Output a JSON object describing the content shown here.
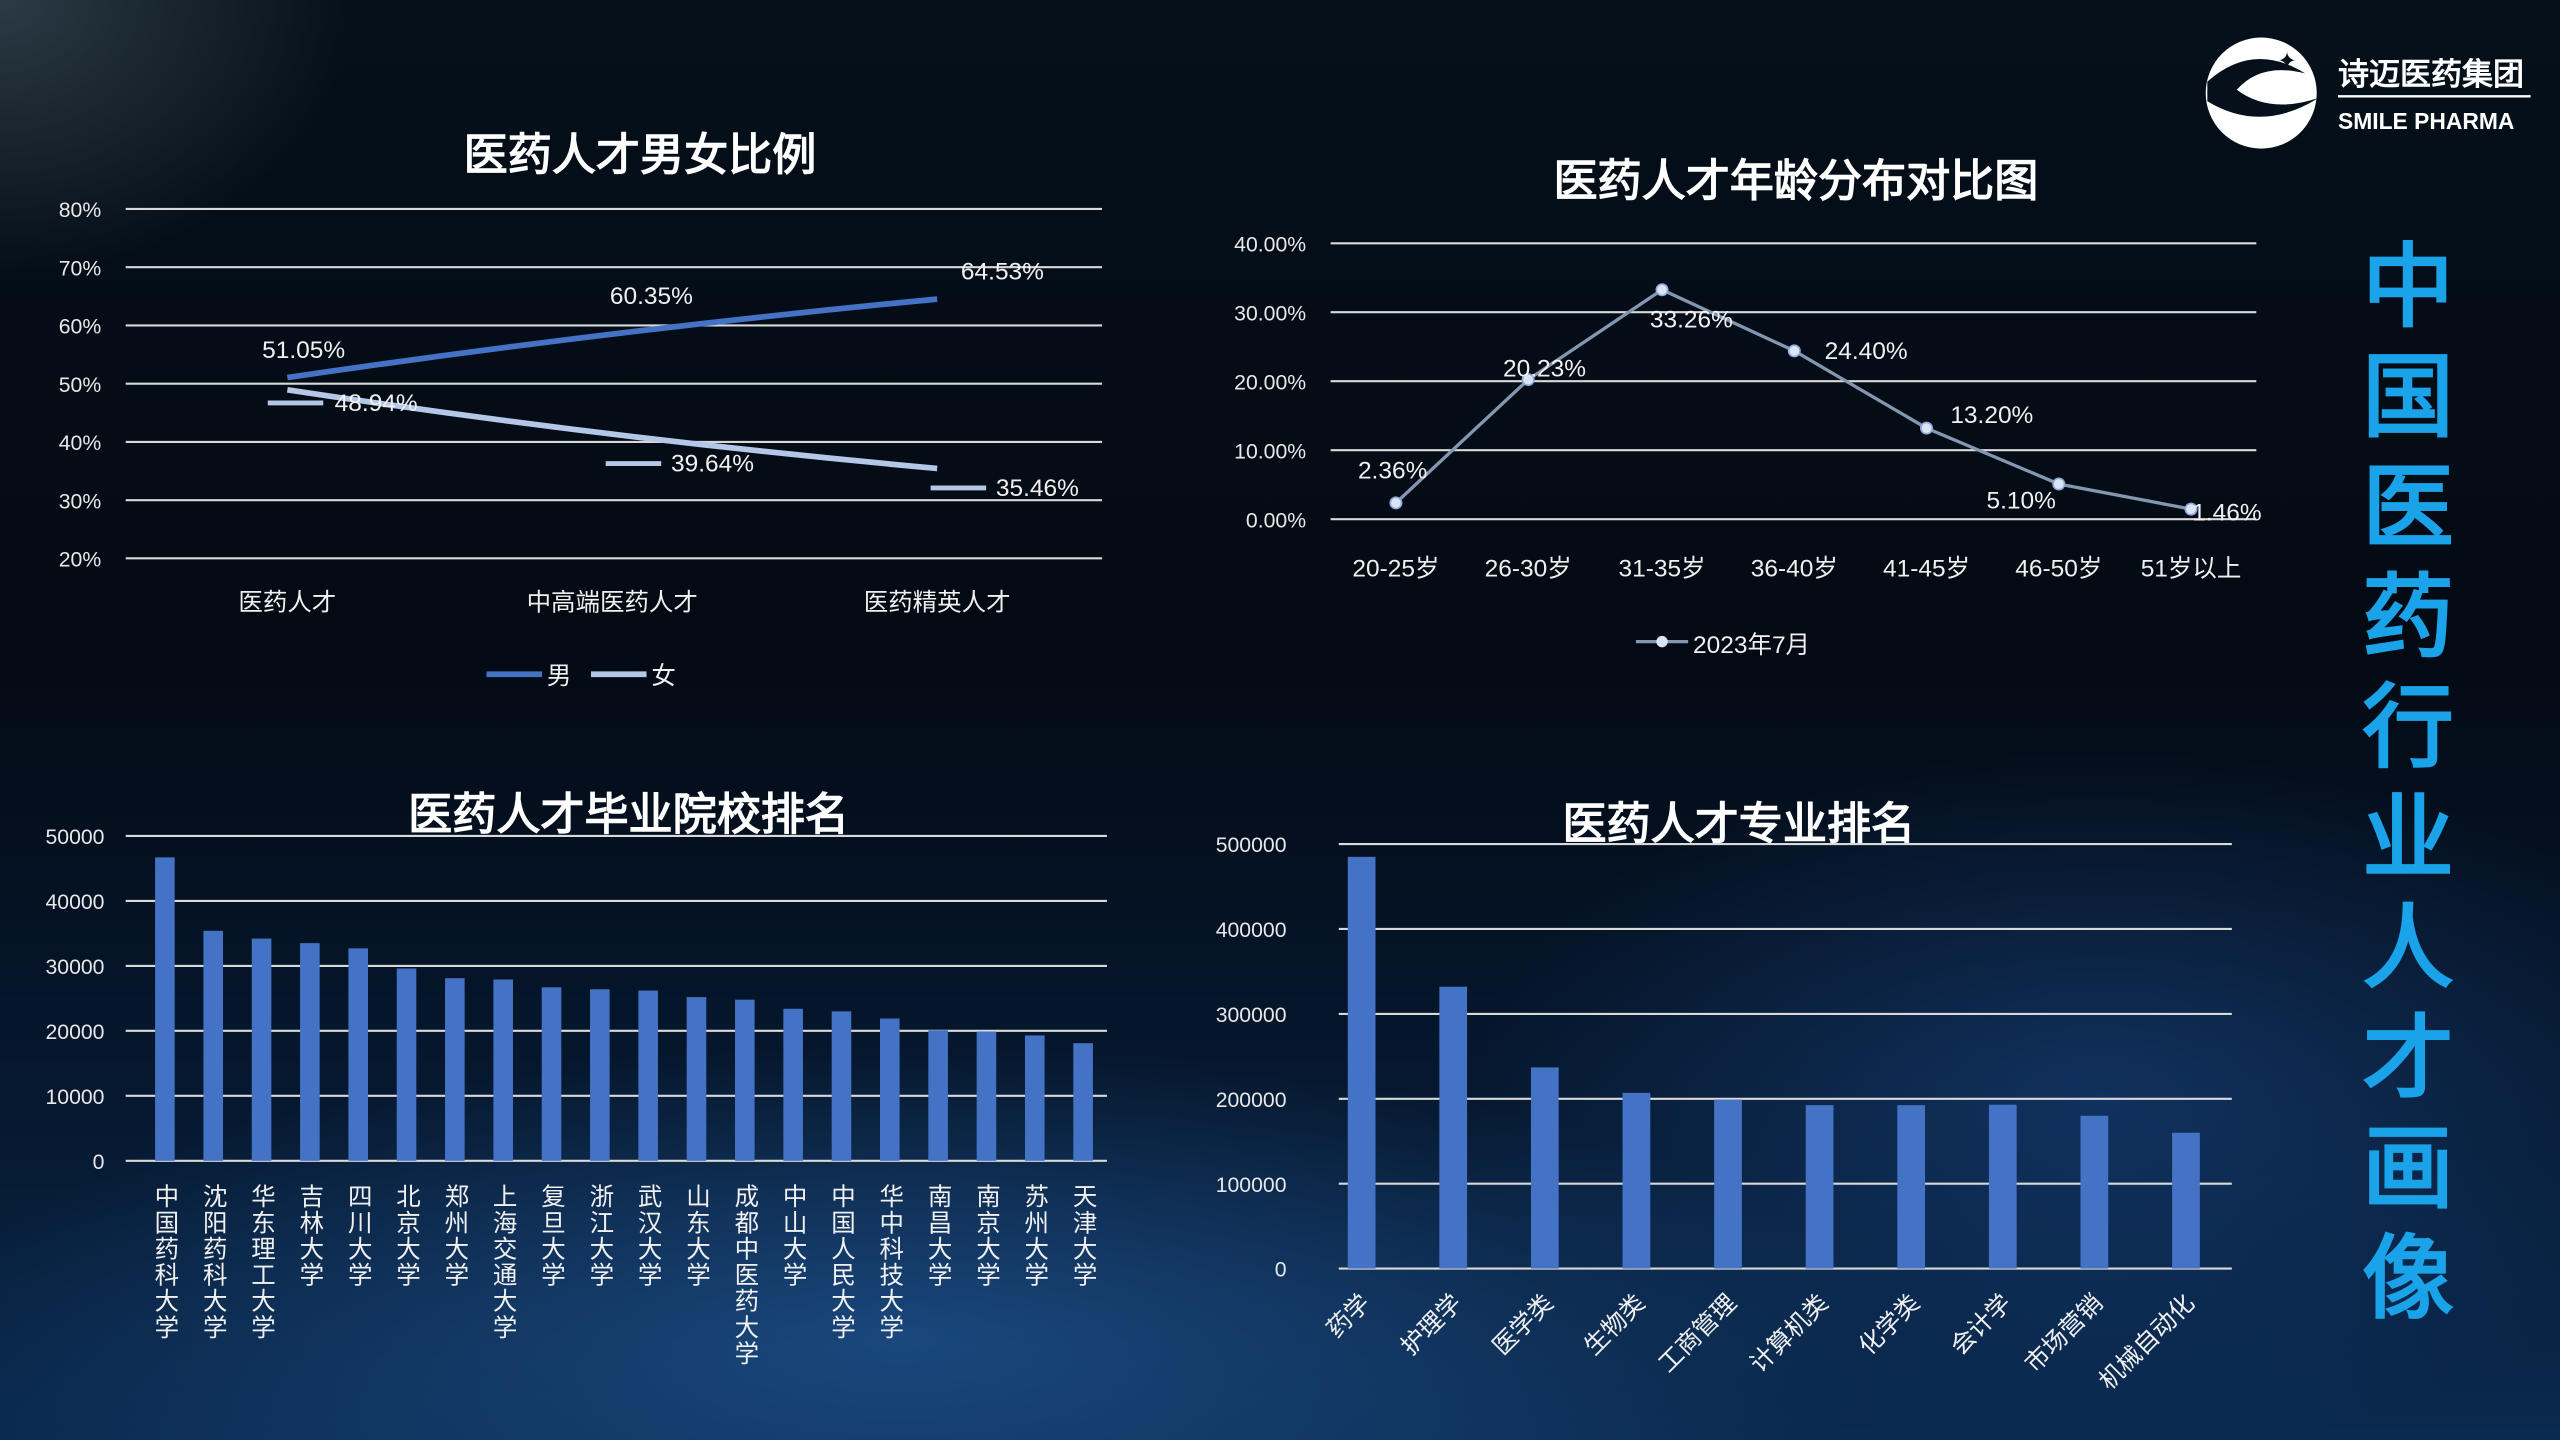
{
  "logo": {
    "name_cn": "诗迈医药集团",
    "name_en": "SMILE PHARMA"
  },
  "side_title": "中国医药行业人才画像",
  "colors": {
    "bar": "#4472c4",
    "male": "#4472c4",
    "female": "#b4c7e7",
    "age_line": "#8497b0",
    "side_title": "#1aa3e8"
  },
  "chart_data": [
    {
      "type": "line",
      "title": "医药人才男女比例",
      "categories": [
        "医药人才",
        "中高端医药人才",
        "医药精英人才"
      ],
      "yticks": [
        "80%",
        "70%",
        "60%",
        "50%",
        "40%",
        "30%",
        "20%"
      ],
      "ylim": [
        20,
        80
      ],
      "series": [
        {
          "name": "男",
          "values": [
            51.05,
            60.35,
            64.53
          ],
          "labels": [
            "51.05%",
            "60.35%",
            "64.53%"
          ]
        },
        {
          "name": "女",
          "values": [
            48.94,
            39.64,
            35.46
          ],
          "labels": [
            "48.94%",
            "39.64%",
            "35.46%"
          ]
        }
      ],
      "legend": "bottom"
    },
    {
      "type": "line",
      "title": "医药人才年龄分布对比图",
      "categories": [
        "20-25岁",
        "26-30岁",
        "31-35岁",
        "36-40岁",
        "41-45岁",
        "46-50岁",
        "51岁以上"
      ],
      "yticks": [
        "40.00%",
        "30.00%",
        "20.00%",
        "10.00%",
        "0.00%"
      ],
      "ylim": [
        0,
        40
      ],
      "series": [
        {
          "name": "2023年7月",
          "values": [
            2.36,
            20.23,
            33.26,
            24.4,
            13.2,
            5.1,
            1.46
          ],
          "labels": [
            "2.36%",
            "20.23%",
            "33.26%",
            "24.40%",
            "13.20%",
            "5.10%",
            "1.46%"
          ]
        }
      ],
      "legend": "bottom"
    },
    {
      "type": "bar",
      "title": "医药人才毕业院校排名",
      "categories": [
        "中国药科大学",
        "沈阳药科大学",
        "华东理工大学",
        "吉林大学",
        "四川大学",
        "北京大学",
        "郑州大学",
        "上海交通大学",
        "复旦大学",
        "浙江大学",
        "武汉大学",
        "山东大学",
        "成都中医药大学",
        "中山大学",
        "中国人民大学",
        "华中科技大学",
        "南昌大学",
        "南京大学",
        "苏州大学",
        "天津大学"
      ],
      "values": [
        46700,
        35400,
        34200,
        33500,
        32700,
        29600,
        28100,
        27900,
        26700,
        26400,
        26200,
        25200,
        24800,
        23400,
        23000,
        21900,
        20100,
        19900,
        19300,
        18100
      ],
      "yticks": [
        "50000",
        "40000",
        "30000",
        "20000",
        "10000",
        "0"
      ],
      "ylim": [
        0,
        50000
      ]
    },
    {
      "type": "bar",
      "title": "医药人才专业排名",
      "categories": [
        "药学",
        "护理学",
        "医学类",
        "生物类",
        "工商管理",
        "计算机类",
        "化学类",
        "会计学",
        "市场营销",
        "机械自动化"
      ],
      "values": [
        485000,
        332000,
        237000,
        207000,
        199000,
        192500,
        192500,
        193000,
        180000,
        160000
      ],
      "yticks": [
        "500000",
        "400000",
        "300000",
        "200000",
        "100000",
        "0"
      ],
      "ylim": [
        0,
        500000
      ]
    }
  ]
}
